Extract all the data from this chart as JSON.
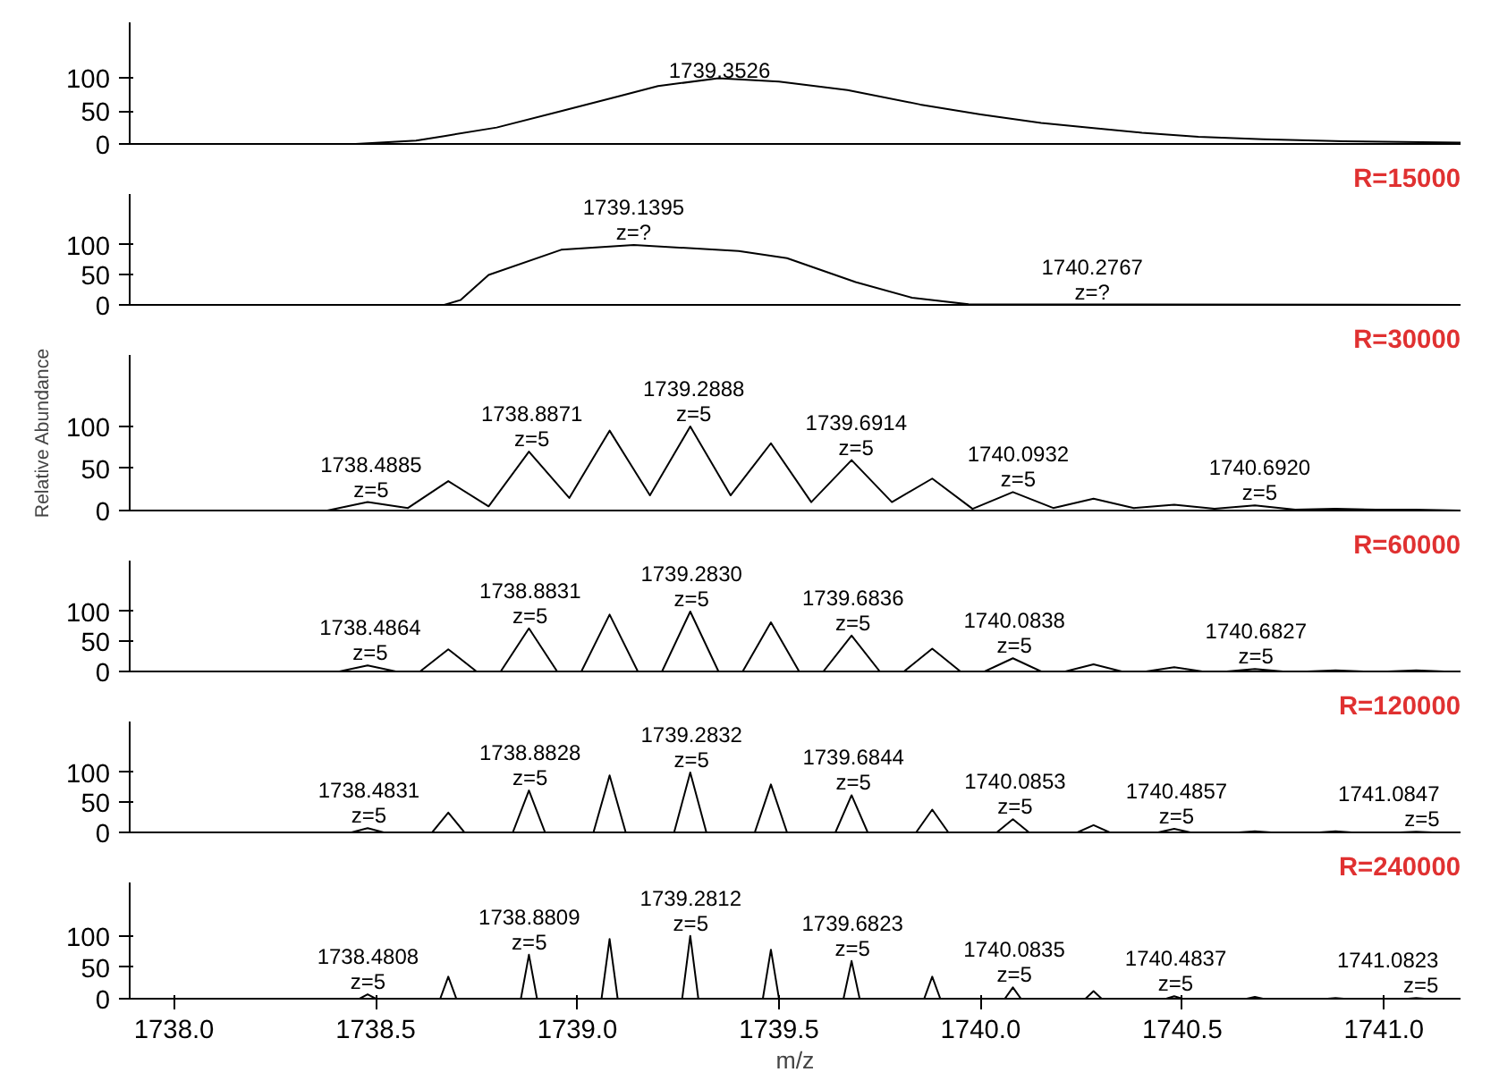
{
  "chart_data": [
    {
      "type": "line",
      "xlim": [
        1737.89,
        1741.19
      ],
      "ylim": [
        0,
        185
      ],
      "yticks": [
        0,
        50,
        100
      ],
      "tick_labels": "y",
      "series": [
        {
          "color": "#000000",
          "x": [
            1737.89,
            1738.45,
            1738.6,
            1738.67,
            1738.8,
            1738.96,
            1739.1,
            1739.2,
            1739.35,
            1739.5,
            1739.67,
            1739.85,
            1740.0,
            1740.15,
            1740.28,
            1740.4,
            1740.54,
            1740.7,
            1740.9,
            1741.19
          ],
          "values": [
            0,
            0,
            5,
            12,
            25,
            50,
            72,
            88,
            100,
            95,
            82,
            60,
            45,
            32,
            24,
            17,
            11,
            7,
            4,
            2
          ]
        }
      ],
      "annotations": [
        {
          "text": "1739.3526",
          "x": 1739.3526,
          "y": 100
        }
      ]
    },
    {
      "type": "line",
      "title": "R=15000",
      "xlim": [
        1737.89,
        1741.19
      ],
      "ylim": [
        0,
        185
      ],
      "yticks": [
        0,
        50,
        100
      ],
      "tick_labels": "y",
      "series": [
        {
          "color": "#000000",
          "x": [
            1737.89,
            1738.67,
            1738.71,
            1738.78,
            1738.96,
            1739.14,
            1739.4,
            1739.52,
            1739.69,
            1739.83,
            1739.97,
            1741.19
          ],
          "values": [
            0,
            0,
            8,
            50,
            92,
            100,
            90,
            78,
            38,
            12,
            1,
            0
          ]
        }
      ],
      "annotations": [
        {
          "text": "1739.1395\nz=?",
          "x": 1739.1395,
          "y": 100
        },
        {
          "text": "1740.2767\nz=?",
          "x": 1740.2767,
          "y": 0
        }
      ]
    },
    {
      "type": "line",
      "title": "R=30000",
      "ylabel": "Relative Abundance",
      "xlim": [
        1737.89,
        1741.19
      ],
      "ylim": [
        0,
        185
      ],
      "yticks": [
        0,
        50,
        100
      ],
      "tick_labels": "y",
      "series": [
        {
          "color": "#000000",
          "x": [
            1737.89,
            1738.38,
            1738.48,
            1738.58,
            1738.68,
            1738.78,
            1738.88,
            1738.98,
            1739.08,
            1739.18,
            1739.28,
            1739.38,
            1739.48,
            1739.58,
            1739.68,
            1739.78,
            1739.88,
            1739.98,
            1740.08,
            1740.18,
            1740.28,
            1740.38,
            1740.48,
            1740.58,
            1740.68,
            1740.78,
            1740.88,
            1740.98,
            1741.08,
            1741.19
          ],
          "values": [
            0,
            0,
            10,
            3,
            35,
            5,
            70,
            15,
            95,
            18,
            100,
            18,
            80,
            10,
            60,
            10,
            38,
            2,
            22,
            3,
            14,
            3,
            7,
            2,
            6,
            1,
            2,
            1,
            1,
            0
          ]
        }
      ],
      "annotations": [
        {
          "text": "1738.4885\nz=5",
          "x": 1738.4885,
          "y": 10
        },
        {
          "text": "1738.8871\nz=5",
          "x": 1738.8871,
          "y": 70
        },
        {
          "text": "1739.2888\nz=5",
          "x": 1739.2888,
          "y": 100
        },
        {
          "text": "1739.6914\nz=5",
          "x": 1739.6914,
          "y": 60
        },
        {
          "text": "1740.0932\nz=5",
          "x": 1740.0932,
          "y": 22
        },
        {
          "text": "1740.6920\nz=5",
          "x": 1740.692,
          "y": 6
        }
      ]
    },
    {
      "type": "line",
      "title": "R=60000",
      "xlim": [
        1737.89,
        1741.19
      ],
      "ylim": [
        0,
        185
      ],
      "yticks": [
        0,
        50,
        100
      ],
      "tick_labels": "y",
      "series": [
        {
          "color": "#000000",
          "x": [
            1737.89,
            1738.41,
            1738.48,
            1738.55,
            1738.61,
            1738.68,
            1738.75,
            1738.81,
            1738.88,
            1738.95,
            1739.01,
            1739.08,
            1739.15,
            1739.21,
            1739.28,
            1739.35,
            1739.41,
            1739.48,
            1739.55,
            1739.61,
            1739.68,
            1739.75,
            1739.81,
            1739.88,
            1739.95,
            1740.01,
            1740.08,
            1740.15,
            1740.21,
            1740.28,
            1740.35,
            1740.41,
            1740.48,
            1740.55,
            1740.61,
            1740.68,
            1740.75,
            1740.81,
            1740.88,
            1740.95,
            1741.01,
            1741.08,
            1741.15,
            1741.19
          ],
          "values": [
            0,
            0,
            10,
            0,
            0,
            37,
            0,
            0,
            72,
            0,
            0,
            95,
            0,
            0,
            100,
            0,
            0,
            82,
            0,
            0,
            60,
            0,
            0,
            38,
            0,
            0,
            22,
            0,
            0,
            12,
            0,
            0,
            7,
            0,
            0,
            4,
            0,
            0,
            2,
            0,
            0,
            2,
            0,
            0
          ]
        }
      ],
      "annotations": [
        {
          "text": "1738.4864\nz=5",
          "x": 1738.4864,
          "y": 10
        },
        {
          "text": "1738.8831\nz=5",
          "x": 1738.8831,
          "y": 72
        },
        {
          "text": "1739.2830\nz=5",
          "x": 1739.283,
          "y": 100
        },
        {
          "text": "1739.6836\nz=5",
          "x": 1739.6836,
          "y": 60
        },
        {
          "text": "1740.0838\nz=5",
          "x": 1740.0838,
          "y": 22
        },
        {
          "text": "1740.6827\nz=5",
          "x": 1740.6827,
          "y": 4
        }
      ]
    },
    {
      "type": "line",
      "title": "R=120000",
      "xlim": [
        1737.89,
        1741.19
      ],
      "ylim": [
        0,
        185
      ],
      "yticks": [
        0,
        50,
        100
      ],
      "tick_labels": "y",
      "series": [
        {
          "color": "#000000",
          "x": [
            1737.89,
            1738.44,
            1738.48,
            1738.52,
            1738.64,
            1738.68,
            1738.72,
            1738.84,
            1738.88,
            1738.92,
            1739.04,
            1739.08,
            1739.12,
            1739.24,
            1739.28,
            1739.32,
            1739.44,
            1739.48,
            1739.52,
            1739.64,
            1739.68,
            1739.72,
            1739.84,
            1739.88,
            1739.92,
            1740.04,
            1740.08,
            1740.12,
            1740.24,
            1740.28,
            1740.32,
            1740.44,
            1740.48,
            1740.52,
            1740.64,
            1740.68,
            1740.72,
            1740.84,
            1740.88,
            1740.92,
            1741.04,
            1741.08,
            1741.12,
            1741.19
          ],
          "values": [
            0,
            0,
            7,
            0,
            0,
            33,
            0,
            0,
            70,
            0,
            0,
            95,
            0,
            0,
            100,
            0,
            0,
            80,
            0,
            0,
            62,
            0,
            0,
            38,
            0,
            0,
            22,
            0,
            0,
            12,
            0,
            0,
            6,
            0,
            0,
            2,
            0,
            0,
            2,
            0,
            0,
            1,
            0,
            0
          ]
        }
      ],
      "annotations": [
        {
          "text": "1738.4831\nz=5",
          "x": 1738.4831,
          "y": 7
        },
        {
          "text": "1738.8828\nz=5",
          "x": 1738.8828,
          "y": 70
        },
        {
          "text": "1739.2832\nz=5",
          "x": 1739.2832,
          "y": 100
        },
        {
          "text": "1739.6844\nz=5",
          "x": 1739.6844,
          "y": 62
        },
        {
          "text": "1740.0853\nz=5",
          "x": 1740.0853,
          "y": 22
        },
        {
          "text": "1740.4857\nz=5",
          "x": 1740.4857,
          "y": 6
        },
        {
          "text": "1741.0847\nz=5",
          "x": 1741.0847,
          "y": 1
        }
      ]
    },
    {
      "type": "line",
      "title": "R=240000",
      "xlabel": "m/z",
      "xlim": [
        1737.89,
        1741.19
      ],
      "xticks": [
        {
          "value": 1738,
          "label": "1738.0"
        },
        {
          "value": 1738.5,
          "label": "1738.5"
        },
        {
          "value": 1739,
          "label": "1739.0"
        },
        {
          "value": 1739.5,
          "label": "1739.5"
        },
        {
          "value": 1740,
          "label": "1740.0"
        },
        {
          "value": 1740.5,
          "label": "1740.5"
        },
        {
          "value": 1741,
          "label": "1741.0"
        }
      ],
      "ylim": [
        0,
        185
      ],
      "yticks": [
        0,
        50,
        100
      ],
      "series": [
        {
          "color": "#000000",
          "x": [
            1737.89,
            1738.46,
            1738.48,
            1738.5,
            1738.66,
            1738.68,
            1738.7,
            1738.86,
            1738.88,
            1738.9,
            1739.06,
            1739.08,
            1739.1,
            1739.26,
            1739.28,
            1739.3,
            1739.46,
            1739.48,
            1739.5,
            1739.66,
            1739.68,
            1739.7,
            1739.86,
            1739.88,
            1739.9,
            1740.06,
            1740.08,
            1740.1,
            1740.26,
            1740.28,
            1740.3,
            1740.46,
            1740.48,
            1740.5,
            1740.66,
            1740.68,
            1740.7,
            1740.86,
            1740.88,
            1740.9,
            1741.06,
            1741.08,
            1741.1,
            1741.19
          ],
          "values": [
            0,
            0,
            7,
            0,
            0,
            35,
            0,
            0,
            70,
            0,
            0,
            95,
            0,
            0,
            100,
            0,
            0,
            78,
            0,
            0,
            60,
            0,
            0,
            35,
            0,
            0,
            18,
            0,
            0,
            12,
            0,
            0,
            4,
            0,
            0,
            3,
            0,
            0,
            1,
            0,
            0,
            1,
            0,
            0
          ]
        }
      ],
      "annotations": [
        {
          "text": "1738.4808\nz=5",
          "x": 1738.4808,
          "y": 7
        },
        {
          "text": "1738.8809\nz=5",
          "x": 1738.8809,
          "y": 70
        },
        {
          "text": "1739.2812\nz=5",
          "x": 1739.2812,
          "y": 100
        },
        {
          "text": "1739.6823\nz=5",
          "x": 1739.6823,
          "y": 60
        },
        {
          "text": "1740.0835\nz=5",
          "x": 1740.0835,
          "y": 18
        },
        {
          "text": "1740.4837\nz=5",
          "x": 1740.4837,
          "y": 4
        },
        {
          "text": "1741.0823\nz=5",
          "x": 1741.0823,
          "y": 1
        }
      ]
    }
  ]
}
